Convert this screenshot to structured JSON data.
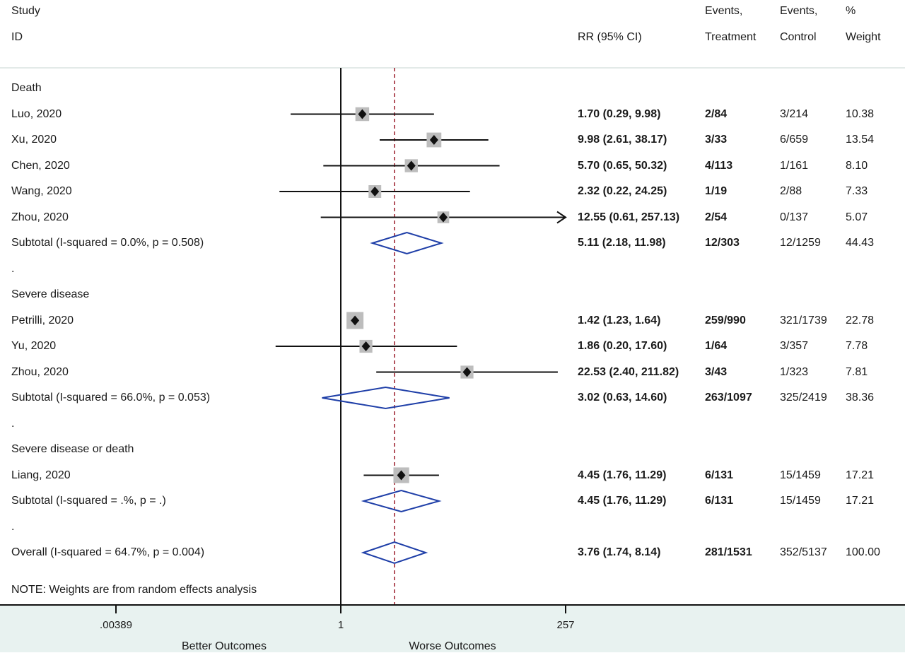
{
  "headers": {
    "study": "Study",
    "id": "ID",
    "rr": "RR (95% CI)",
    "events_t_1": "Events,",
    "events_t_2": "Treatment",
    "events_c_1": "Events,",
    "events_c_2": "Control",
    "weight_1": "%",
    "weight_2": "Weight"
  },
  "footnote": "NOTE: Weights are from random effects analysis",
  "axis": {
    "ticks": [
      ".00389",
      "1",
      "257"
    ],
    "left_label": "Better Outcomes",
    "right_label": "Worse Outcomes"
  },
  "chart_data": {
    "type": "forest",
    "scale": "log",
    "xlim": [
      0.00389,
      257
    ],
    "null_line": 1,
    "overall_line": 3.76,
    "colors": {
      "diamond": "#1f3fa8",
      "box": "#bdbdbd",
      "ref_line": "#9b1c2a",
      "line": "#111111"
    },
    "rows": [
      {
        "kind": "group",
        "label": "Death"
      },
      {
        "kind": "study",
        "label": "Luo, 2020",
        "est": 1.7,
        "lo": 0.29,
        "hi": 9.98,
        "rr_text": "1.70 (0.29, 9.98)",
        "treat": "2/84",
        "ctrl": "3/214",
        "weight": "10.38",
        "w": 10.38
      },
      {
        "kind": "study",
        "label": "Xu, 2020",
        "est": 9.98,
        "lo": 2.61,
        "hi": 38.17,
        "rr_text": "9.98 (2.61, 38.17)",
        "treat": "3/33",
        "ctrl": "6/659",
        "weight": "13.54",
        "w": 13.54
      },
      {
        "kind": "study",
        "label": "Chen, 2020",
        "est": 5.7,
        "lo": 0.65,
        "hi": 50.32,
        "rr_text": "5.70 (0.65, 50.32)",
        "treat": "4/113",
        "ctrl": "1/161",
        "weight": "8.10",
        "w": 8.1
      },
      {
        "kind": "study",
        "label": "Wang, 2020",
        "est": 2.32,
        "lo": 0.22,
        "hi": 24.25,
        "rr_text": "2.32 (0.22, 24.25)",
        "treat": "1/19",
        "ctrl": "2/88",
        "weight": "7.33",
        "w": 7.33
      },
      {
        "kind": "study",
        "label": "Zhou, 2020",
        "est": 12.55,
        "lo": 0.61,
        "hi": 257.13,
        "rr_text": "12.55 (0.61, 257.13)",
        "treat": "2/54",
        "ctrl": "0/137",
        "weight": "5.07",
        "w": 5.07,
        "arrow_right": true
      },
      {
        "kind": "subtotal",
        "label": "Subtotal  (I-squared = 0.0%, p = 0.508)",
        "est": 5.11,
        "lo": 2.18,
        "hi": 11.98,
        "rr_text": "5.11 (2.18, 11.98)",
        "treat": "12/303",
        "ctrl": "12/1259",
        "weight": "44.43"
      },
      {
        "kind": "spacer",
        "label": "."
      },
      {
        "kind": "group",
        "label": "Severe disease"
      },
      {
        "kind": "study",
        "label": "Petrilli, 2020",
        "est": 1.42,
        "lo": 1.23,
        "hi": 1.64,
        "rr_text": "1.42 (1.23, 1.64)",
        "treat": "259/990",
        "ctrl": "321/1739",
        "weight": "22.78",
        "w": 22.78
      },
      {
        "kind": "study",
        "label": "Yu, 2020",
        "est": 1.86,
        "lo": 0.2,
        "hi": 17.6,
        "rr_text": "1.86 (0.20, 17.60)",
        "treat": "1/64",
        "ctrl": "3/357",
        "weight": "7.78",
        "w": 7.78
      },
      {
        "kind": "study",
        "label": "Zhou, 2020",
        "est": 22.53,
        "lo": 2.4,
        "hi": 211.82,
        "rr_text": "22.53 (2.40, 211.82)",
        "treat": "3/43",
        "ctrl": "1/323",
        "weight": "7.81",
        "w": 7.81
      },
      {
        "kind": "subtotal",
        "label": "Subtotal  (I-squared = 66.0%, p = 0.053)",
        "est": 3.02,
        "lo": 0.63,
        "hi": 14.6,
        "rr_text": "3.02 (0.63, 14.60)",
        "treat": "263/1097",
        "ctrl": "325/2419",
        "weight": "38.36"
      },
      {
        "kind": "spacer",
        "label": "."
      },
      {
        "kind": "group",
        "label": "Severe disease or death"
      },
      {
        "kind": "study",
        "label": "Liang, 2020",
        "est": 4.45,
        "lo": 1.76,
        "hi": 11.29,
        "rr_text": "4.45 (1.76, 11.29)",
        "treat": "6/131",
        "ctrl": "15/1459",
        "weight": "17.21",
        "w": 17.21
      },
      {
        "kind": "subtotal",
        "label": "Subtotal  (I-squared = .%, p = .)",
        "est": 4.45,
        "lo": 1.76,
        "hi": 11.29,
        "rr_text": "4.45 (1.76, 11.29)",
        "treat": "6/131",
        "ctrl": "15/1459",
        "weight": "17.21"
      },
      {
        "kind": "spacer",
        "label": "."
      },
      {
        "kind": "overall",
        "label": "Overall  (I-squared = 64.7%, p = 0.004)",
        "est": 3.76,
        "lo": 1.74,
        "hi": 8.14,
        "rr_text": "3.76 (1.74, 8.14)",
        "treat": "281/1531",
        "ctrl": "352/5137",
        "weight": "100.00"
      }
    ]
  }
}
